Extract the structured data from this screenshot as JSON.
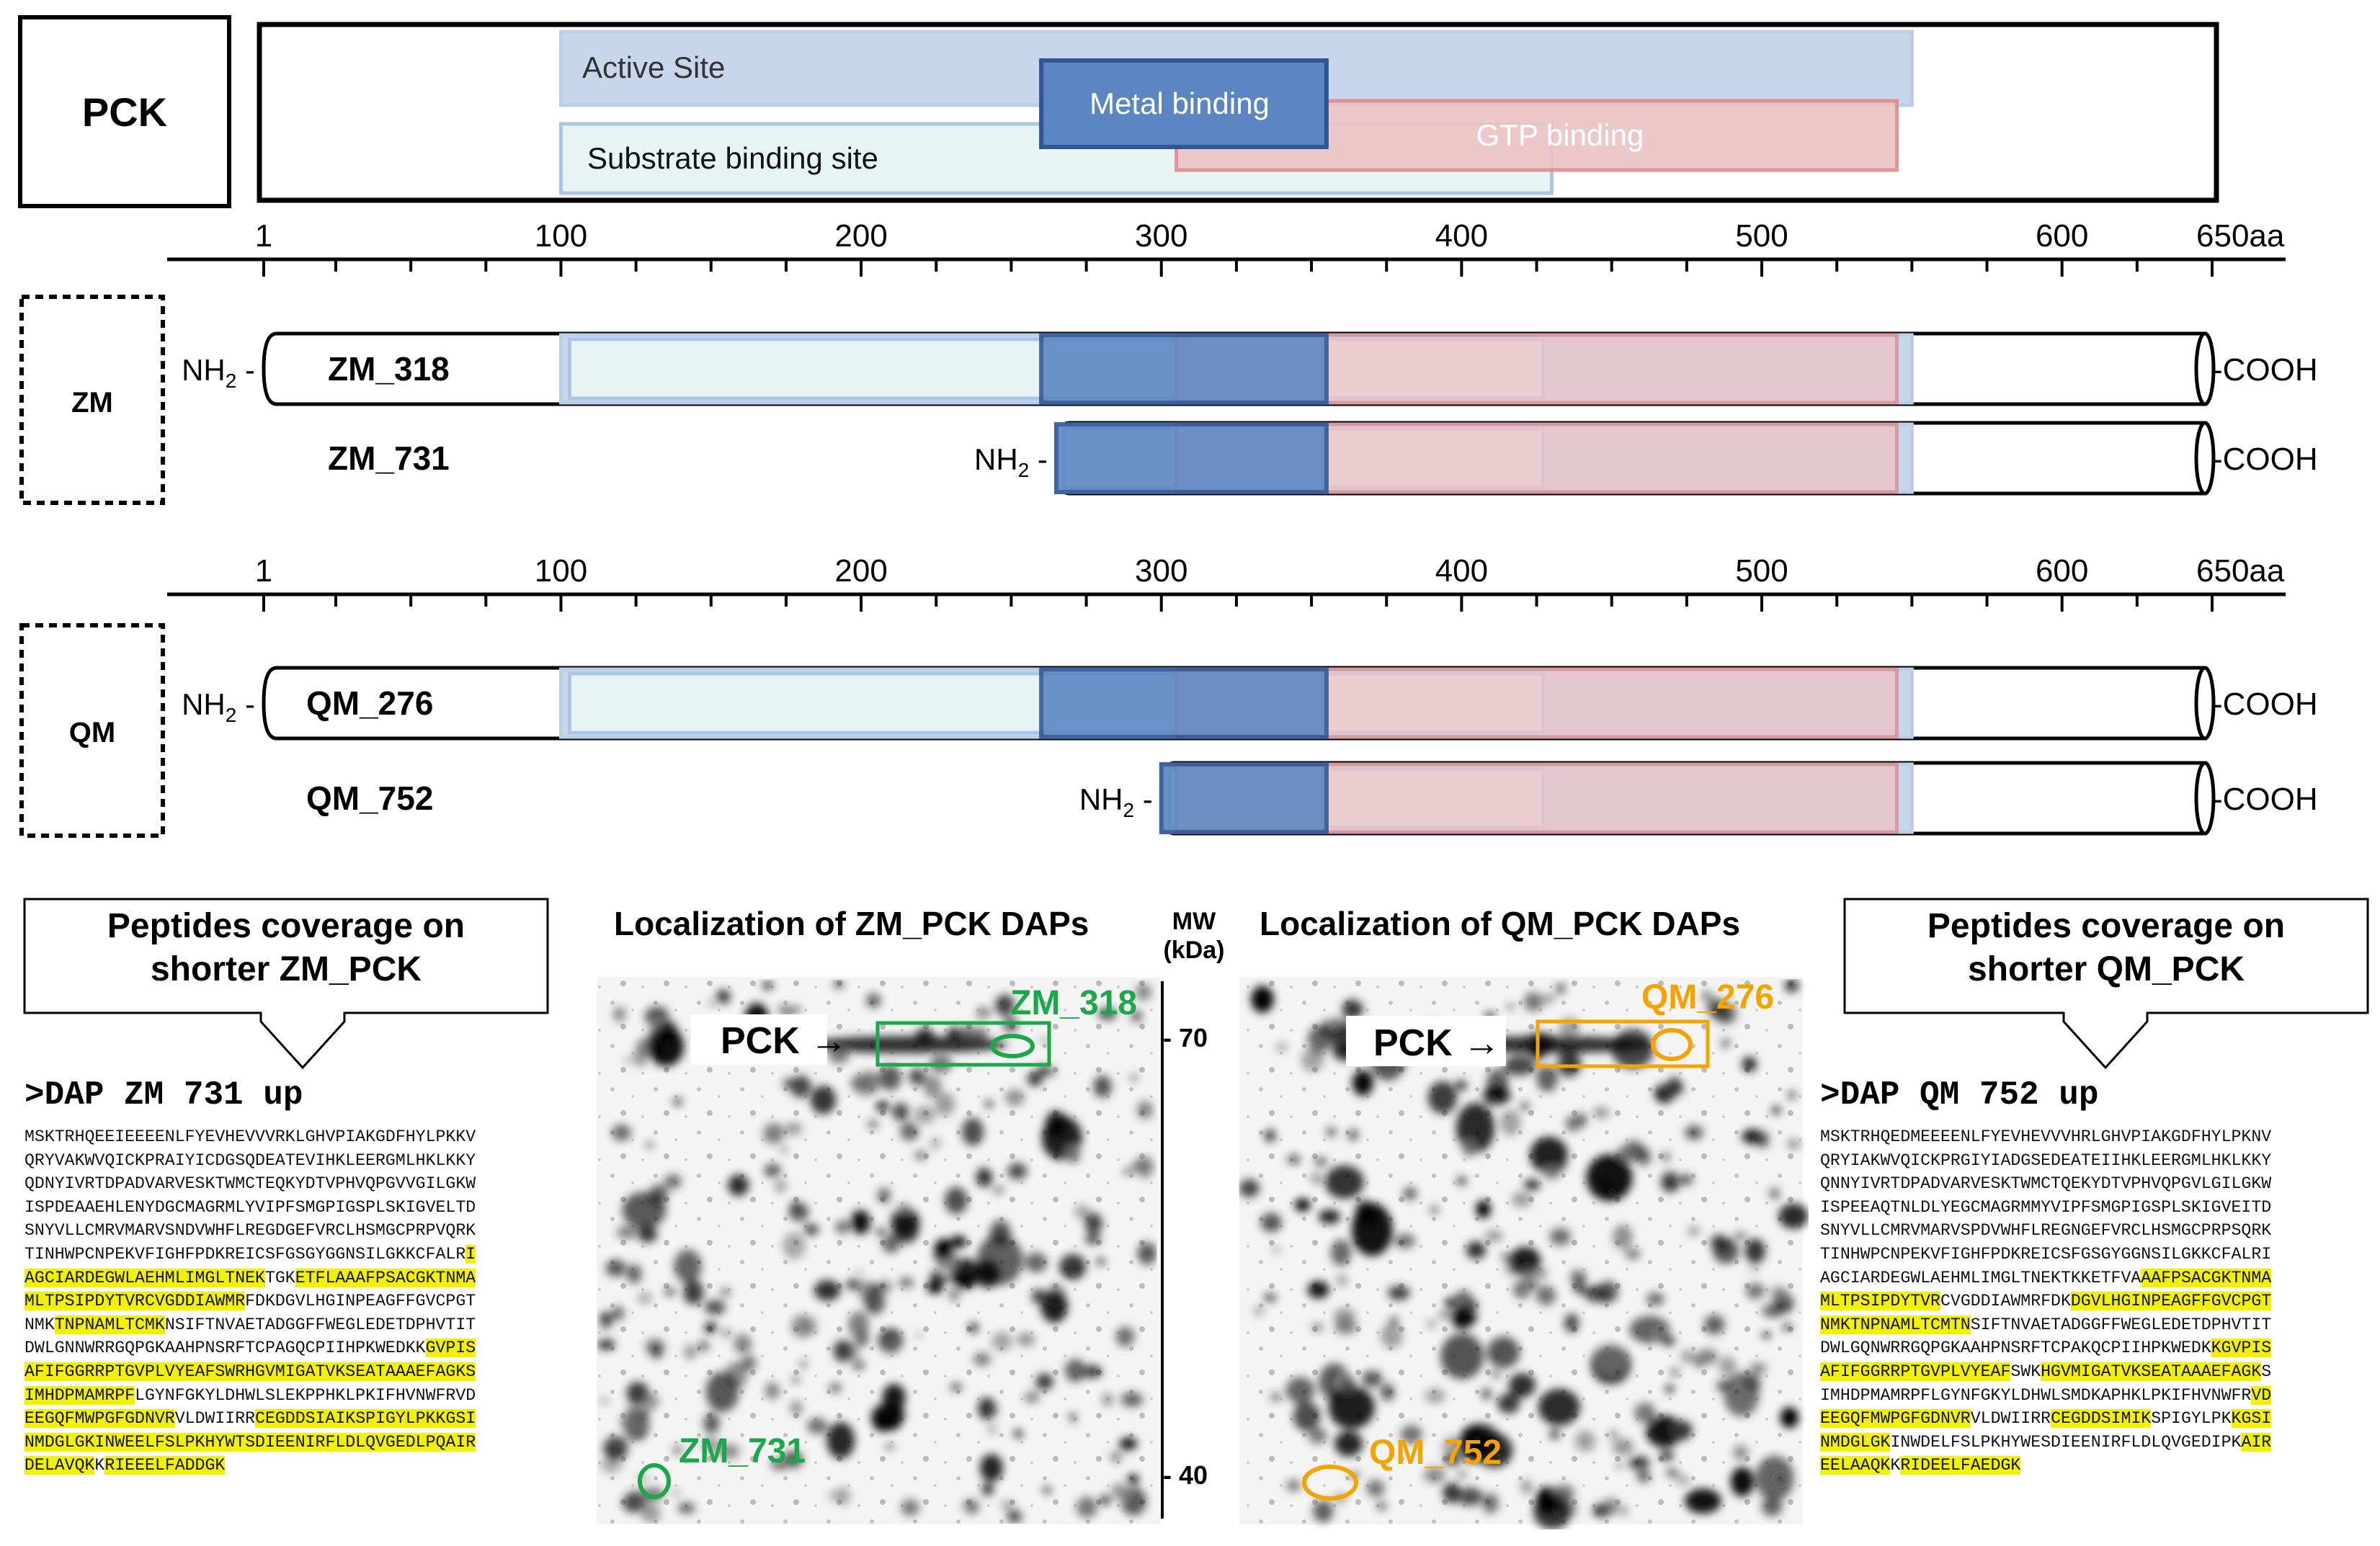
{
  "protein": {
    "label": "PCK",
    "domains": [
      {
        "key": "active",
        "name": "Active Site",
        "start": 100,
        "end": 550,
        "fill": "#c8d6ec",
        "stroke": "#bccde8",
        "text_color": "#333333"
      },
      {
        "key": "substrate",
        "name": "Substrate binding site",
        "start": 100,
        "end": 430,
        "fill": "#e8f4f4",
        "stroke": "#a9c6e6",
        "text_color": "#111111"
      },
      {
        "key": "gtp",
        "name": "GTP binding",
        "start": 305,
        "end": 545,
        "fill": "#ecc3c6",
        "stroke": "#de8a8e",
        "text_color": "#ffffff"
      },
      {
        "key": "metal",
        "name": "Metal binding",
        "start": 260,
        "end": 355,
        "fill": "#5b86c2",
        "stroke": "#2e5594",
        "text_color": "#ffffff"
      }
    ]
  },
  "axis": {
    "min": 1,
    "max": 650,
    "tick_labels": [
      "1",
      "100",
      "200",
      "300",
      "400",
      "500",
      "600",
      "650aa"
    ]
  },
  "terminals": {
    "n": "NH",
    "n_sub": "2",
    "c": "-COOH"
  },
  "groups": [
    {
      "label": "ZM",
      "isoforms": [
        {
          "name": "ZM_318",
          "start": 1
        },
        {
          "name": "ZM_731",
          "start": 265
        }
      ]
    },
    {
      "label": "QM",
      "isoforms": [
        {
          "name": "QM_276",
          "start": 1
        },
        {
          "name": "QM_752",
          "start": 300
        }
      ]
    }
  ],
  "gels": {
    "zm_title": "Localization of ZM_PCK DAPs",
    "qm_title": "Localization of QM_PCK DAPs",
    "mw_label": "MW",
    "mw_unit": "(kDa)",
    "mw_marks": [
      "- 70",
      "- 40"
    ],
    "pck_arrow": "PCK →",
    "zm_spots": [
      "ZM_318",
      "ZM_731"
    ],
    "qm_spots": [
      "QM_276",
      "QM_752"
    ],
    "zm_color": "#1aa84a",
    "qm_color": "#f5a300"
  },
  "coverage": {
    "left_title_line1": "Peptides coverage  on",
    "left_title_line2": "shorter ZM_PCK",
    "right_title_line1": "Peptides coverage  on",
    "right_title_line2": "shorter QM_PCK",
    "highlight_color": "#f2f200",
    "zm_header": ">DAP ZM 731 up",
    "qm_header": ">DAP QM 752 up",
    "zm_lines": [
      [
        {
          "t": "MSKTRHQEEIEEEENLFYEVHEVVVRKLGHVPIAKGDFHYLPKKV"
        }
      ],
      [
        {
          "t": "QRYVAKWVQICKPRAIYICDGSQDEATEVIHKLEERGMLHKLKKY"
        }
      ],
      [
        {
          "t": "QDNYIVRTDPADVARVESKTWMCTEQKYDTVPHVQPGVVGILGKW"
        }
      ],
      [
        {
          "t": "ISPDEAAEHLENYDGCMAGRMLYVIPFSMGPIGSPLSKIGVELTD"
        }
      ],
      [
        {
          "t": "SNYVLLCMRVMARVSNDVWHFLREGDGEFVRCLHSMGCPRPVQRK"
        }
      ],
      [
        {
          "t": "TINHWPCNPEKVFIGHFPDKREICSFGSGYGGNSILGKKCFALR"
        },
        {
          "t": "I",
          "h": 1
        }
      ],
      [
        {
          "t": "AGCIARDEGWLAEHMLIMGLTNEK",
          "h": 1
        },
        {
          "t": "TGK"
        },
        {
          "t": "ETFLAAAFPSACGKTNMA",
          "h": 1
        }
      ],
      [
        {
          "t": "MLTPSIPDYTVRCVGDDIAWMR",
          "h": 1
        },
        {
          "t": "FDKDGVLHGINPEAGFFGVCPGT"
        }
      ],
      [
        {
          "t": "NMK"
        },
        {
          "t": "TNPNAMLTCMK",
          "h": 1
        },
        {
          "t": "NSIFTNVAETADGGFFWEGLEDETDPHVTIT"
        }
      ],
      [
        {
          "t": "DWLGNNWRRGQPGKAAHPNSRFTCPAGQCPIIHPKWEDKK"
        },
        {
          "t": "GVPIS",
          "h": 1
        }
      ],
      [
        {
          "t": "AFIFGGRRPTGVPLVYEAF",
          "h": 1
        },
        {
          "t": "SWRHGVMIGATVKSEATAAAEFAGKS",
          "h": 1
        }
      ],
      [
        {
          "t": "IMHDPMAMRPF",
          "h": 1
        },
        {
          "t": "LGYNFGKYLDHWLSLEKPPHKLPKIFHVNWFRVD"
        },
        {
          "t": "",
          "h": 1
        }
      ],
      [
        {
          "t": "EEGQFMWPGFGDNVR",
          "h": 1
        },
        {
          "t": "VLDWIIRR"
        },
        {
          "t": "CEGDDSIAIKSPIGYLPKKGSI",
          "h": 1
        }
      ],
      [
        {
          "t": "NMDGLGKINWEELFSLPKHYWTSDIEENIRFLDLQVGEDLPQAIR",
          "h": 1
        }
      ],
      [
        {
          "t": "DELAVQK",
          "h": 1
        },
        {
          "t": "K"
        },
        {
          "t": "RIEEELFADDGK",
          "h": 1
        }
      ]
    ],
    "qm_lines": [
      [
        {
          "t": "MSKTRHQEDMEEEENLFYEVHEVVVHRLGHVPIAKGDFHYLPKNV"
        }
      ],
      [
        {
          "t": "QRYIAKWVQICKPRGIYIADGSEDEATEIIHKLEERGMLHKLKKY"
        }
      ],
      [
        {
          "t": "QNNYIVRTDPADVARVESKTWMCTQEKYDTVPHVQPGVLGILGKW"
        }
      ],
      [
        {
          "t": "ISPEEAQTNLDLYEGCMAGRMMYVIPFSMGPIGSPLSKIGVEITD"
        }
      ],
      [
        {
          "t": "SNYVLLCMRVMARVSPDVWHFLREGNGEFVRCLHSMGCPRPSQRK"
        }
      ],
      [
        {
          "t": "TINHWPCNPEKVFIGHFPDKREICSFGSGYGGNSILGKKCFALRI"
        }
      ],
      [
        {
          "t": "AGCIARDEGWLAEHMLIMGLTNEKTKKETFVA"
        },
        {
          "t": "AAFPSACGKTNMA",
          "h": 1
        }
      ],
      [
        {
          "t": "MLTPSIPDYTVR",
          "h": 1
        },
        {
          "t": "CVGDDIAWMRFDK"
        },
        {
          "t": "DGVLHGINPEAGFFGVCPGT",
          "h": 1
        }
      ],
      [
        {
          "t": "NMKTNPNAMLTCMTN",
          "h": 1
        },
        {
          "t": "SIFTNVAETADGGFFWEGLEDETDPHVTIT"
        }
      ],
      [
        {
          "t": "DWLGQNWRRGQPGKAAHPNSRFTCPAKQCPIIHPKWEDK"
        },
        {
          "t": "KGVPIS",
          "h": 1
        }
      ],
      [
        {
          "t": "AFIFGGRRPTGVPLVYEAF",
          "h": 1
        },
        {
          "t": "SWK"
        },
        {
          "t": "HGVMIGATVKSEATAAAEFAGK",
          "h": 1
        },
        {
          "t": "S"
        }
      ],
      [
        {
          "t": "IMHDPMAMRPFLGYNFGKYLDHWLSMDKAPHKLPKIFHVNWFR"
        },
        {
          "t": "VD",
          "h": 1
        }
      ],
      [
        {
          "t": "EEGQFMWPGFGDNVR",
          "h": 1
        },
        {
          "t": "VLDWIIRR"
        },
        {
          "t": "CEGDDSIMIK",
          "h": 1
        },
        {
          "t": "SPIGYLPK"
        },
        {
          "t": "KGSI",
          "h": 1
        }
      ],
      [
        {
          "t": "NMDGLGK",
          "h": 1
        },
        {
          "t": "INWDELFSLPKHYWESDIEENIRFLDLQVGEDIPK"
        },
        {
          "t": "AIR",
          "h": 1
        }
      ],
      [
        {
          "t": "EELAAQK",
          "h": 1
        },
        {
          "t": "K"
        },
        {
          "t": "RIDEELFAEDGK",
          "h": 1
        }
      ]
    ]
  }
}
